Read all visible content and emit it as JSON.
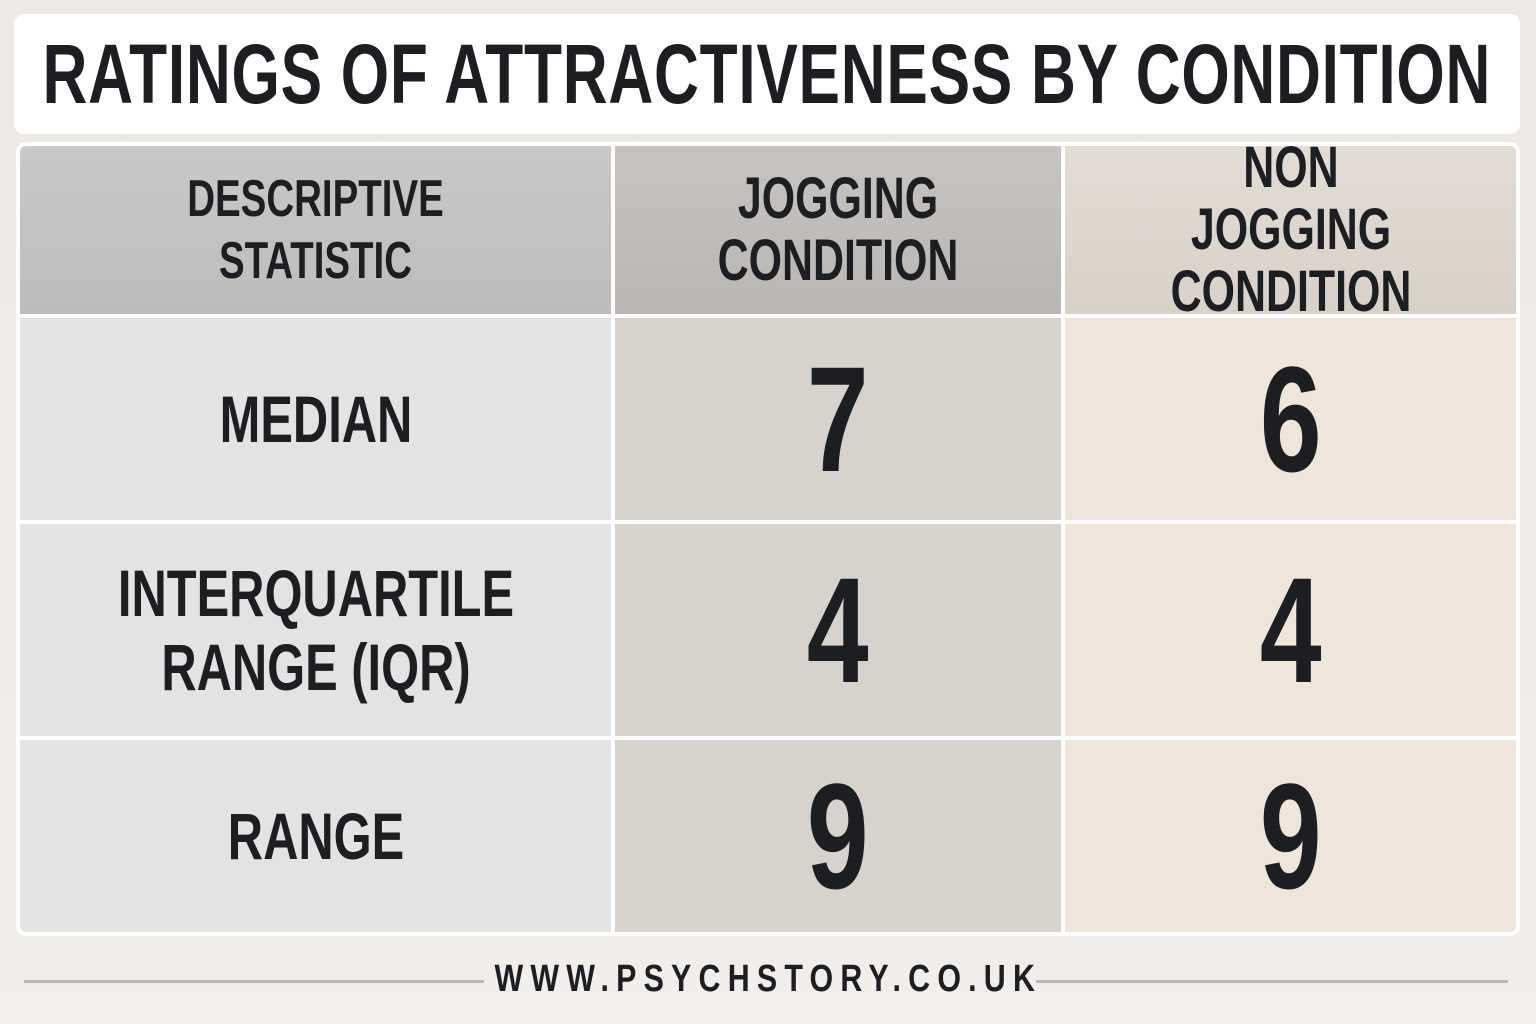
{
  "header": {
    "title": "RATINGS OF ATTRACTIVENESS BY CONDITION"
  },
  "table": {
    "columns": [
      "DESCRIPTIVE STATISTIC",
      "JOGGING CONDITION",
      "NON JOGGING CONDITION"
    ],
    "rows": [
      [
        "MEDIAN",
        7,
        6
      ],
      [
        "INTERQUARTILE RANGE (IQR)",
        4,
        4
      ],
      [
        "RANGE",
        9,
        9
      ]
    ]
  },
  "footer": {
    "url": "WWW.PSYCHSTORY.CO.UK"
  }
}
